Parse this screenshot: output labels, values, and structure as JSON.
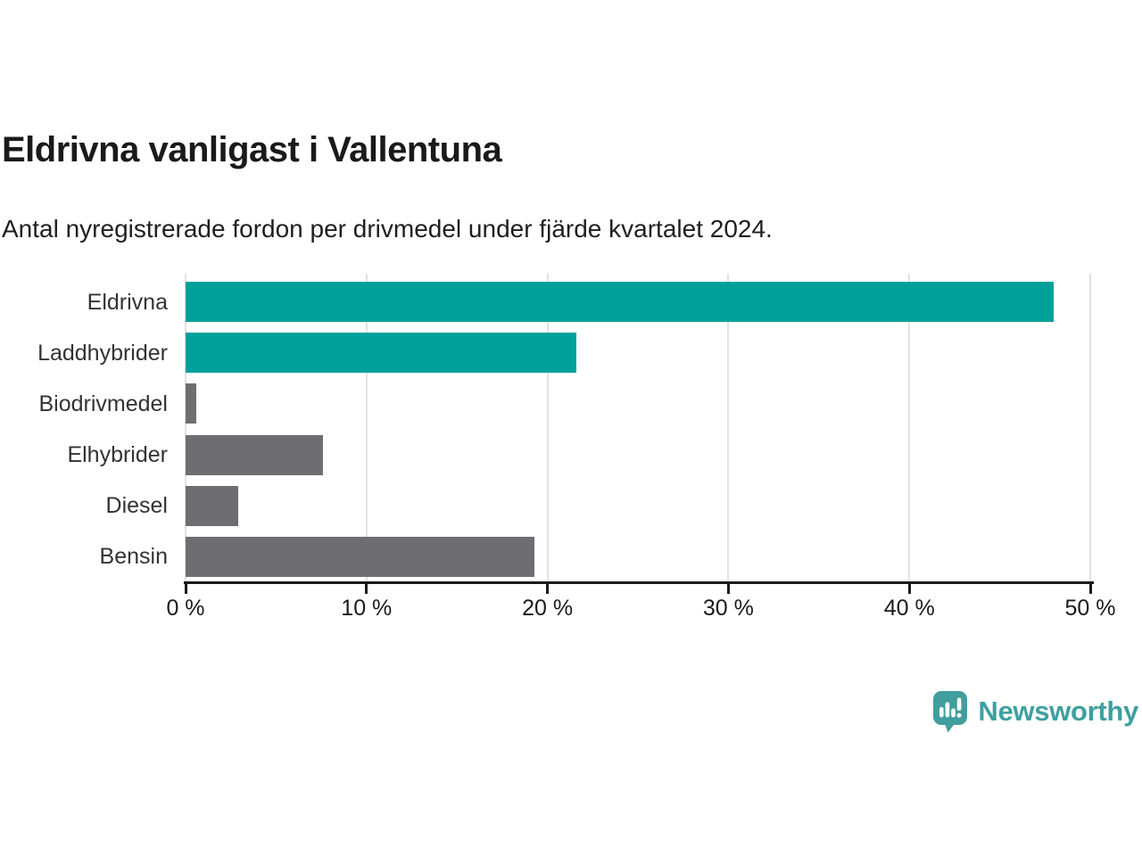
{
  "chart_data": {
    "type": "bar",
    "orientation": "horizontal",
    "title": "Eldrivna vanligast i Vallentuna",
    "subtitle": "Antal nyregistrerade fordon per drivmedel under fjärde kvartalet 2024.",
    "categories": [
      "Eldrivna",
      "Laddhybrider",
      "Biodrivmedel",
      "Elhybrider",
      "Diesel",
      "Bensin"
    ],
    "values": [
      48.0,
      21.6,
      0.6,
      7.6,
      2.9,
      19.3
    ],
    "unit": "%",
    "bar_colors": [
      "#00a19a",
      "#00a19a",
      "#6e6e72",
      "#6e6e72",
      "#6e6e72",
      "#6e6e72"
    ],
    "xlabel": "",
    "ylabel": "",
    "xlim": [
      0,
      50
    ],
    "x_ticks": [
      0,
      10,
      20,
      30,
      40,
      50
    ],
    "x_tick_labels": [
      "0 %",
      "10 %",
      "20 %",
      "30 %",
      "40 %",
      "50 %"
    ],
    "grid": "vertical-only",
    "legend": "none"
  },
  "footer": {
    "brand": "Newsworthy"
  },
  "colors": {
    "accent_teal": "#00a19a",
    "neutral_gray": "#6e6e72",
    "logo_teal": "#419e9d",
    "gridline": "#e3e3e3",
    "axis": "#1b1b1b",
    "title_text": "#1a1a1a",
    "label_text": "#333333"
  },
  "icons": {
    "logo": "newsworthy-speech-bubble-bar-chart-icon"
  }
}
